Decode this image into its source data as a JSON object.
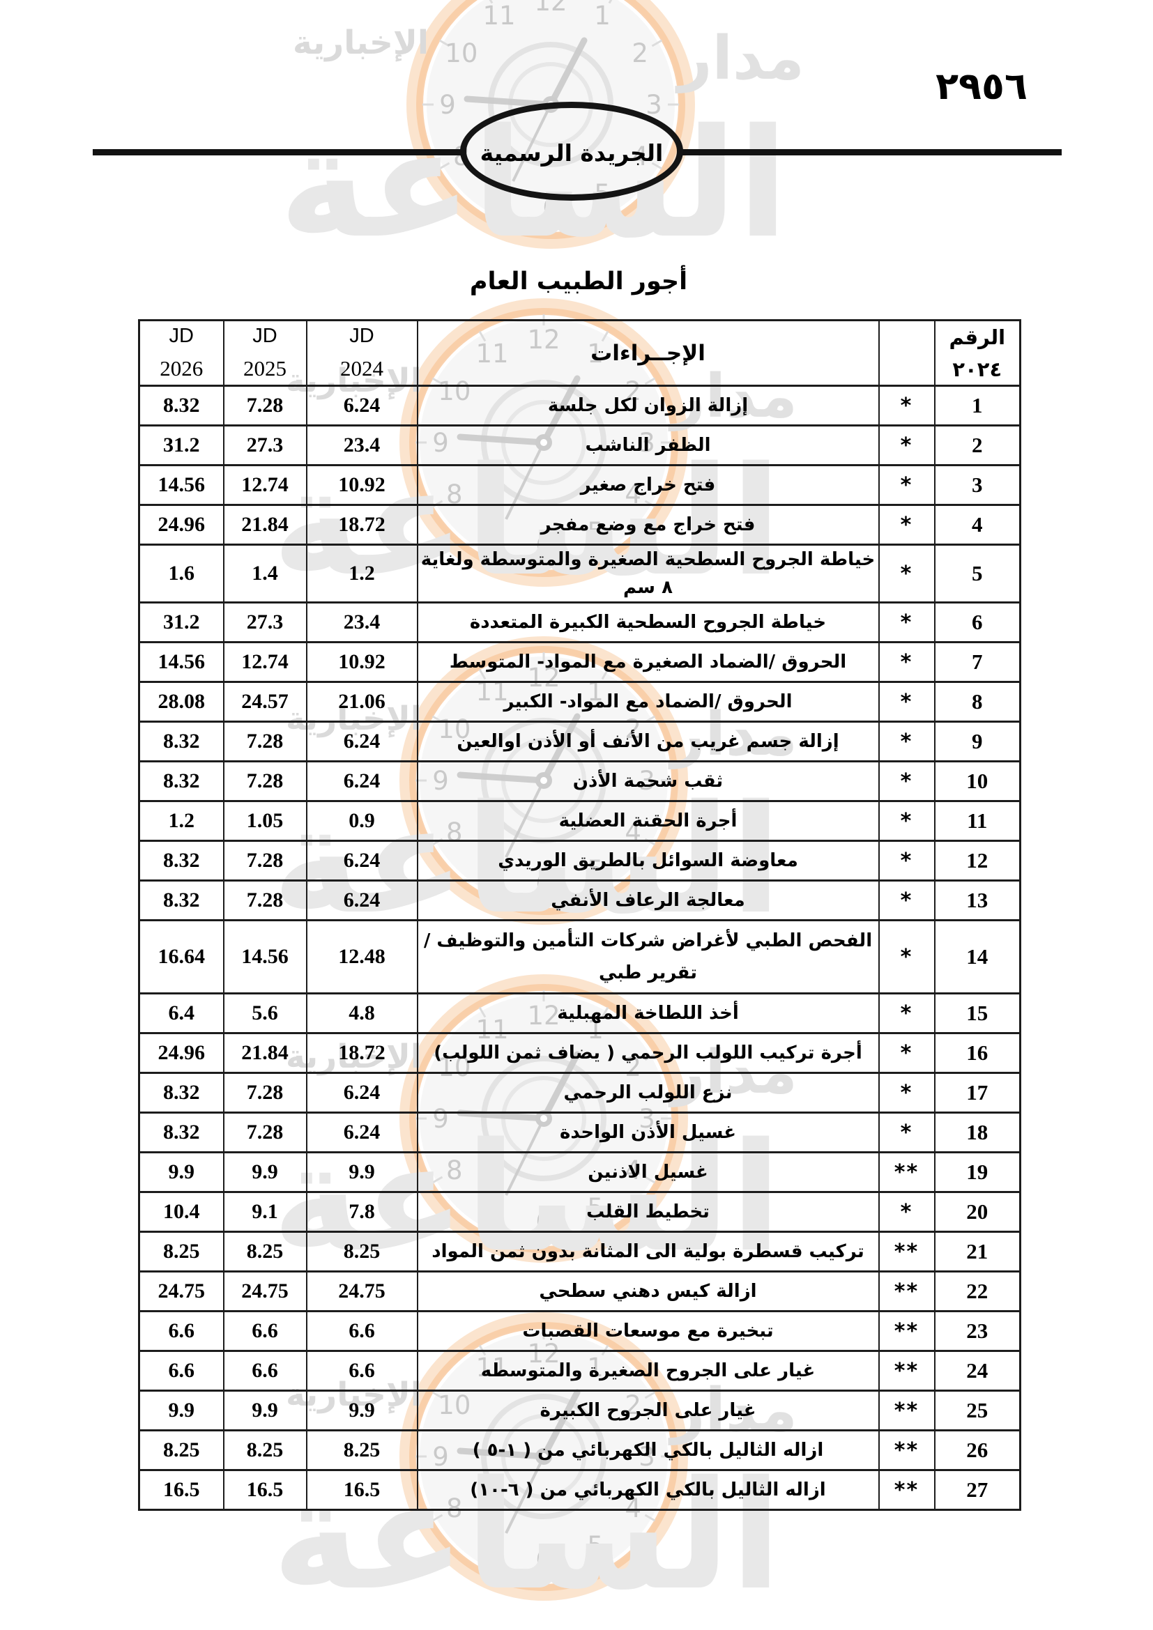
{
  "page": {
    "page_number": "٢٩٥٦"
  },
  "masthead": {
    "gazette_name": "الجريدة الرسمية"
  },
  "document": {
    "title": "أجور الطبيب العام"
  },
  "watermark": {
    "brand_name": "مدار",
    "brand_main": "الساعة",
    "brand_sub": "الإخبارية",
    "clock_numerals": [
      "12",
      "1",
      "2",
      "3",
      "4",
      "5",
      "6",
      "7",
      "8",
      "9",
      "10",
      "11"
    ]
  },
  "table": {
    "header": {
      "col_number_label": "الرقم",
      "col_number_year": "٢٠٢٤",
      "col_stars": "",
      "col_procedures": "الإجــراءات",
      "col_2024_currency": "JD",
      "col_2024_year": "2024",
      "col_2025_currency": "JD",
      "col_2025_year": "2025",
      "col_2026_currency": "JD",
      "col_2026_year": "2026"
    },
    "rows": [
      {
        "no": "1",
        "stars": "*",
        "procedure": "إزالة الزوان لكل جلسة",
        "jd2024": "6.24",
        "jd2025": "7.28",
        "jd2026": "8.32",
        "tall": false
      },
      {
        "no": "2",
        "stars": "*",
        "procedure": "الظفر الناشب",
        "jd2024": "23.4",
        "jd2025": "27.3",
        "jd2026": "31.2",
        "tall": false
      },
      {
        "no": "3",
        "stars": "*",
        "procedure": "فتح خراج صغير",
        "jd2024": "10.92",
        "jd2025": "12.74",
        "jd2026": "14.56",
        "tall": false
      },
      {
        "no": "4",
        "stars": "*",
        "procedure": "فتح خراج مع وضع مفجر",
        "jd2024": "18.72",
        "jd2025": "21.84",
        "jd2026": "24.96",
        "tall": false
      },
      {
        "no": "5",
        "stars": "*",
        "procedure": "خياطة الجروح السطحية الصغيرة والمتوسطة ولغاية ٨ سم",
        "jd2024": "1.2",
        "jd2025": "1.4",
        "jd2026": "1.6",
        "tall": false
      },
      {
        "no": "6",
        "stars": "*",
        "procedure": "خياطة الجروح السطحية الكبيرة المتعددة",
        "jd2024": "23.4",
        "jd2025": "27.3",
        "jd2026": "31.2",
        "tall": false
      },
      {
        "no": "7",
        "stars": "*",
        "procedure": "الحروق /الضماد الصغيرة مع المواد- المتوسط",
        "jd2024": "10.92",
        "jd2025": "12.74",
        "jd2026": "14.56",
        "tall": false
      },
      {
        "no": "8",
        "stars": "*",
        "procedure": "الحروق /الضماد مع المواد- الكبير",
        "jd2024": "21.06",
        "jd2025": "24.57",
        "jd2026": "28.08",
        "tall": false
      },
      {
        "no": "9",
        "stars": "*",
        "procedure": "إزالة جسم غريب من الأنف أو الأذن اوالعين",
        "jd2024": "6.24",
        "jd2025": "7.28",
        "jd2026": "8.32",
        "tall": false
      },
      {
        "no": "10",
        "stars": "*",
        "procedure": "ثقب شحمة الأذن",
        "jd2024": "6.24",
        "jd2025": "7.28",
        "jd2026": "8.32",
        "tall": false
      },
      {
        "no": "11",
        "stars": "*",
        "procedure": "أجرة الحقنة العضلية",
        "jd2024": "0.9",
        "jd2025": "1.05",
        "jd2026": "1.2",
        "tall": false
      },
      {
        "no": "12",
        "stars": "*",
        "procedure": "معاوضة السوائل بالطريق الوريدي",
        "jd2024": "6.24",
        "jd2025": "7.28",
        "jd2026": "8.32",
        "tall": false
      },
      {
        "no": "13",
        "stars": "*",
        "procedure": "معالجة الرعاف الأنفي",
        "jd2024": "6.24",
        "jd2025": "7.28",
        "jd2026": "8.32",
        "tall": false
      },
      {
        "no": "14",
        "stars": "*",
        "procedure": "الفحص الطبي لأغراض شركات التأمين والتوظيف / تقرير طبي",
        "jd2024": "12.48",
        "jd2025": "14.56",
        "jd2026": "16.64",
        "tall": true
      },
      {
        "no": "15",
        "stars": "*",
        "procedure": "أخذ اللطاخة المهبلية",
        "jd2024": "4.8",
        "jd2025": "5.6",
        "jd2026": "6.4",
        "tall": false
      },
      {
        "no": "16",
        "stars": "*",
        "procedure": "أجرة تركيب اللولب الرحمي ( يضاف ثمن اللولب)",
        "jd2024": "18.72",
        "jd2025": "21.84",
        "jd2026": "24.96",
        "tall": false
      },
      {
        "no": "17",
        "stars": "*",
        "procedure": "نزع اللولب الرحمي",
        "jd2024": "6.24",
        "jd2025": "7.28",
        "jd2026": "8.32",
        "tall": false
      },
      {
        "no": "18",
        "stars": "*",
        "procedure": "غسيل الأذن الواحدة",
        "jd2024": "6.24",
        "jd2025": "7.28",
        "jd2026": "8.32",
        "tall": false
      },
      {
        "no": "19",
        "stars": "**",
        "procedure": "غسيل الاذنين",
        "jd2024": "9.9",
        "jd2025": "9.9",
        "jd2026": "9.9",
        "tall": false
      },
      {
        "no": "20",
        "stars": "*",
        "procedure": "تخطيط القلب",
        "jd2024": "7.8",
        "jd2025": "9.1",
        "jd2026": "10.4",
        "tall": false
      },
      {
        "no": "21",
        "stars": "**",
        "procedure": "تركيب قسطرة بولية الى المثانة بدون ثمن المواد",
        "jd2024": "8.25",
        "jd2025": "8.25",
        "jd2026": "8.25",
        "tall": false
      },
      {
        "no": "22",
        "stars": "**",
        "procedure": "ازالة كيس دهني سطحي",
        "jd2024": "24.75",
        "jd2025": "24.75",
        "jd2026": "24.75",
        "tall": false
      },
      {
        "no": "23",
        "stars": "**",
        "procedure": "تبخيرة مع موسعات القصبات",
        "jd2024": "6.6",
        "jd2025": "6.6",
        "jd2026": "6.6",
        "tall": false
      },
      {
        "no": "24",
        "stars": "**",
        "procedure": "غيار على الجروح الصغيرة والمتوسطه",
        "jd2024": "6.6",
        "jd2025": "6.6",
        "jd2026": "6.6",
        "tall": false
      },
      {
        "no": "25",
        "stars": "**",
        "procedure": "غيار على الجروح الكبيرة",
        "jd2024": "9.9",
        "jd2025": "9.9",
        "jd2026": "9.9",
        "tall": false
      },
      {
        "no": "26",
        "stars": "**",
        "procedure": "ازاله الثاليل بالكي الكهربائي من ( ١-٥ )",
        "jd2024": "8.25",
        "jd2025": "8.25",
        "jd2026": "8.25",
        "tall": false
      },
      {
        "no": "27",
        "stars": "**",
        "procedure": "ازاله الثاليل بالكي الكهربائي من ( ٦-١٠)",
        "jd2024": "16.5",
        "jd2025": "16.5",
        "jd2026": "16.5",
        "tall": false
      }
    ]
  }
}
